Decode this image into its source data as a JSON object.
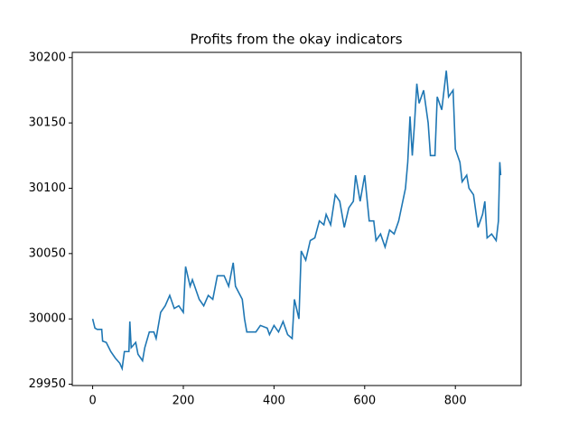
{
  "chart_data": {
    "type": "line",
    "title": "Profits from the okay indicators",
    "x": [
      0,
      5,
      10,
      20,
      22,
      30,
      40,
      50,
      55,
      60,
      65,
      70,
      80,
      82,
      85,
      95,
      100,
      110,
      115,
      125,
      135,
      140,
      150,
      160,
      170,
      180,
      190,
      200,
      205,
      215,
      220,
      225,
      235,
      245,
      255,
      265,
      275,
      290,
      300,
      310,
      315,
      330,
      335,
      340,
      360,
      370,
      385,
      390,
      400,
      410,
      420,
      430,
      440,
      445,
      455,
      460,
      470,
      480,
      490,
      500,
      510,
      515,
      525,
      535,
      545,
      555,
      565,
      575,
      580,
      590,
      600,
      610,
      620,
      625,
      635,
      645,
      655,
      665,
      675,
      690,
      695,
      700,
      705,
      710,
      715,
      720,
      730,
      740,
      745,
      755,
      760,
      770,
      780,
      785,
      795,
      800,
      810,
      815,
      825,
      830,
      840,
      850,
      860,
      865,
      870,
      880,
      890,
      895,
      898,
      900
    ],
    "series": [
      {
        "color": "#1f77b4",
        "values": [
          30000,
          29993,
          29992,
          29992,
          29983,
          29982,
          29975,
          29970,
          29968,
          29966,
          29962,
          29975,
          29975,
          29998,
          29978,
          29982,
          29973,
          29968,
          29978,
          29990,
          29990,
          29985,
          30005,
          30010,
          30018,
          30008,
          30010,
          30005,
          30040,
          30025,
          30030,
          30025,
          30015,
          30010,
          30018,
          30015,
          30033,
          30033,
          30025,
          30043,
          30025,
          30015,
          30000,
          29990,
          29990,
          29995,
          29993,
          29988,
          29995,
          29990,
          29998,
          29988,
          29985,
          30015,
          30000,
          30052,
          30045,
          30060,
          30062,
          30075,
          30072,
          30080,
          30072,
          30095,
          30090,
          30070,
          30085,
          30090,
          30110,
          30090,
          30110,
          30075,
          30075,
          30060,
          30065,
          30055,
          30068,
          30065,
          30075,
          30100,
          30120,
          30155,
          30125,
          30150,
          30180,
          30165,
          30175,
          30150,
          30125,
          30125,
          30170,
          30160,
          30190,
          30170,
          30175,
          30130,
          30120,
          30105,
          30110,
          30100,
          30095,
          30070,
          30080,
          30090,
          30062,
          30065,
          30060,
          30075,
          30120,
          30110
        ]
      }
    ],
    "xlim": [
      -45,
      945
    ],
    "xticks": [
      0,
      200,
      400,
      600,
      800
    ],
    "ylim": [
      29949,
      30204
    ],
    "yticks": [
      29950,
      30000,
      30050,
      30100,
      30150,
      30200
    ]
  }
}
